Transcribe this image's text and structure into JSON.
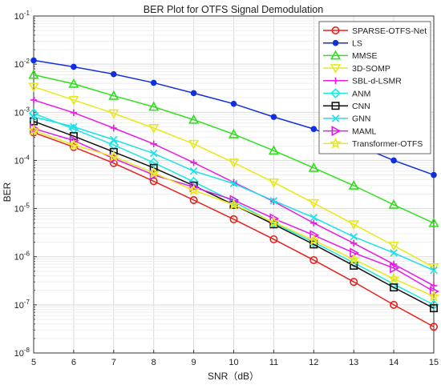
{
  "chart_data": {
    "type": "line",
    "title": "BER Plot for OTFS Signal Demodulation",
    "xlabel": "SNR（dB）",
    "ylabel": "BER",
    "y_scale": "log",
    "grid": true,
    "legend_position": "top-right",
    "xlim": [
      5,
      15
    ],
    "ylim": [
      1e-08,
      0.1
    ],
    "x_ticks": [
      "5",
      "6",
      "7",
      "8",
      "9",
      "10",
      "11",
      "12",
      "13",
      "14",
      "15"
    ],
    "y_tick_exponents": [
      "-8",
      "-7",
      "-6",
      "-5",
      "-4",
      "-3",
      "-2",
      "-1"
    ],
    "x": [
      5,
      6,
      7,
      8,
      9,
      10,
      11,
      12,
      13,
      14,
      15
    ],
    "series": [
      {
        "name": "SPARSE-OTFS-Net",
        "color": "#e8201c",
        "marker": "circle",
        "values": [
          0.00038,
          0.00019,
          8.8e-05,
          3.7e-05,
          1.5e-05,
          6e-06,
          2.3e-06,
          8.5e-07,
          3e-07,
          1e-07,
          3.5e-08
        ]
      },
      {
        "name": "LS",
        "color": "#1030e0",
        "marker": "dot",
        "values": [
          0.012,
          0.0088,
          0.0062,
          0.0041,
          0.0025,
          0.0015,
          0.0008,
          0.00045,
          0.00022,
          0.0001,
          5e-05
        ]
      },
      {
        "name": "MMSE",
        "color": "#2fe01c",
        "marker": "triangle-up",
        "values": [
          0.006,
          0.0039,
          0.0022,
          0.0013,
          0.0007,
          0.00035,
          0.00016,
          7e-05,
          3e-05,
          1.2e-05,
          5e-06
        ]
      },
      {
        "name": "3D-SOMP",
        "color": "#e8e81c",
        "marker": "triangle-down",
        "values": [
          0.0034,
          0.0018,
          0.00095,
          0.00047,
          0.00022,
          9e-05,
          3.5e-05,
          1.3e-05,
          4.7e-06,
          1.7e-06,
          6e-07
        ]
      },
      {
        "name": "SBL-d-LSMR",
        "color": "#e81ce0",
        "marker": "plus",
        "values": [
          0.0018,
          0.00098,
          0.00047,
          0.00022,
          9e-05,
          3.5e-05,
          1.4e-05,
          5e-06,
          1.9e-06,
          7e-07,
          2.5e-07
        ]
      },
      {
        "name": "ANM",
        "color": "#1ce8e0",
        "marker": "diamond",
        "values": [
          0.00095,
          0.00045,
          0.00021,
          9e-05,
          3.6e-05,
          1.4e-05,
          5e-06,
          2e-06,
          7.5e-07,
          2.7e-07,
          1e-07
        ]
      },
      {
        "name": "CNN",
        "color": "#111111",
        "marker": "square",
        "values": [
          0.00065,
          0.00032,
          0.00015,
          7e-05,
          3e-05,
          1.2e-05,
          4.7e-06,
          1.8e-06,
          6.5e-07,
          2.3e-07,
          8.5e-08
        ]
      },
      {
        "name": "GNN",
        "color": "#1ce0e8",
        "marker": "x",
        "values": [
          0.0008,
          0.0005,
          0.00027,
          0.00014,
          6e-05,
          3.3e-05,
          1.45e-05,
          6.5e-06,
          2.6e-06,
          1.2e-06,
          5.2e-07
        ]
      },
      {
        "name": "MAML",
        "color": "#e01ce8",
        "marker": "triangle-right",
        "values": [
          0.00046,
          0.00026,
          0.00011,
          5e-05,
          2.8e-05,
          1.5e-05,
          6.2e-06,
          2.8e-06,
          1.2e-06,
          5.8e-07,
          1.9e-07
        ]
      },
      {
        "name": "Transformer-OTFS",
        "color": "#e8e81c",
        "marker": "star",
        "values": [
          0.00042,
          0.00021,
          0.00012,
          5.5e-05,
          2.4e-05,
          1.2e-05,
          5.2e-06,
          2.2e-06,
          8.8e-07,
          3.5e-07,
          1.5e-07
        ]
      }
    ]
  }
}
